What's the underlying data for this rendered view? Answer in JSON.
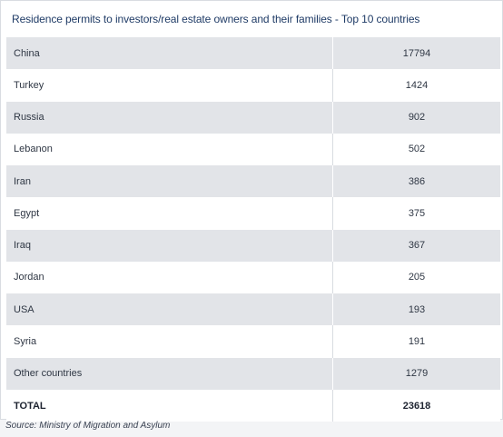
{
  "title": "Residence permits to investors/real estate owners and their families - Top 10 countries",
  "source": "Source: Ministry of Migration and Asylum",
  "chart_data": {
    "type": "table",
    "title": "Residence permits to investors/real estate owners and their families - Top 10 countries",
    "categories": [
      "China",
      "Turkey",
      "Russia",
      "Lebanon",
      "Iran",
      "Egypt",
      "Iraq",
      "Jordan",
      "USA",
      "Syria",
      "Other countries",
      "TOTAL"
    ],
    "values": [
      17794,
      1424,
      902,
      502,
      386,
      375,
      367,
      205,
      193,
      191,
      1279,
      23618
    ]
  },
  "colors": {
    "shade": "#e2e4e8",
    "title": "#1f3b66"
  }
}
